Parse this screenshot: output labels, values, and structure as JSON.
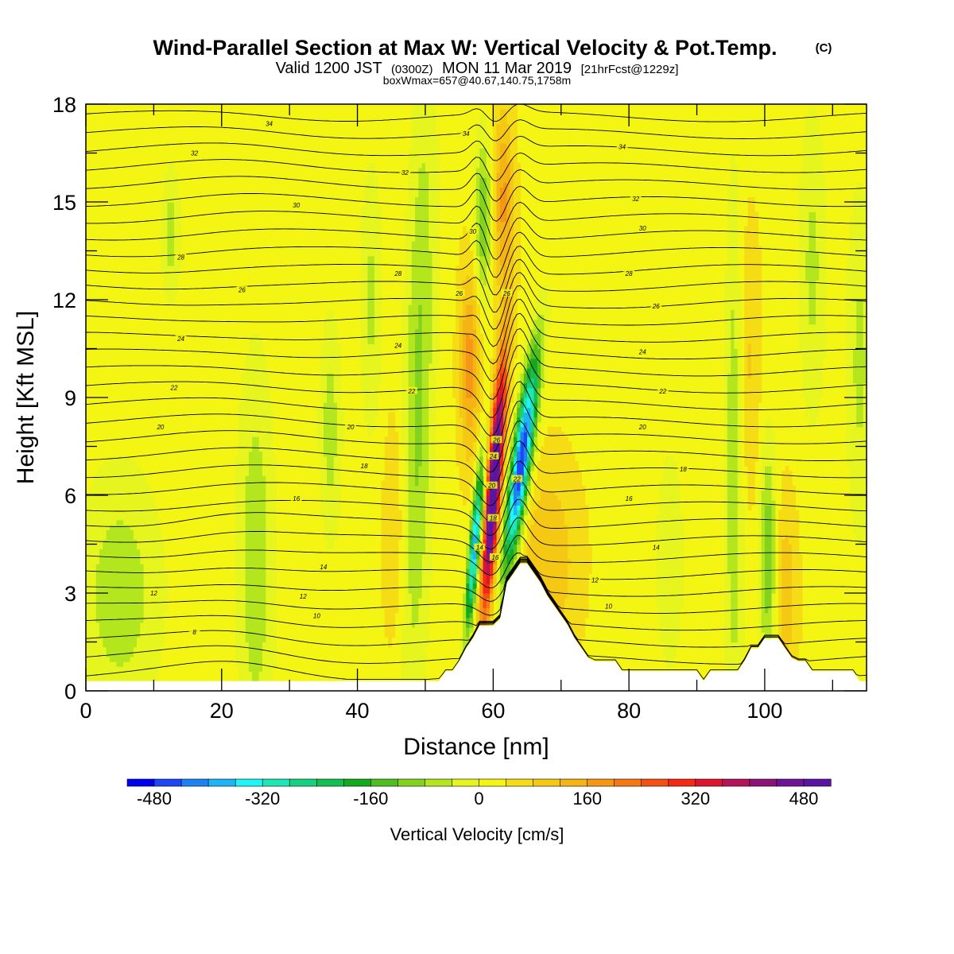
{
  "title": {
    "main": "Wind-Parallel Section at Max W: Vertical Velocity & Pot.Temp.",
    "copyright": "(C)",
    "valid_prefix": "Valid 1200 JST",
    "valid_utc": "(0300Z)",
    "valid_date": "MON 11 Mar 2019",
    "forecast": "[21hrFcst@1229z]",
    "subtitle": "boxWmax=657@40.67,140.75,1758m"
  },
  "chart_data": {
    "type": "heatmap",
    "xlabel": "Distance [nm]",
    "ylabel": "Height [Kft MSL]",
    "xlim": [
      0,
      115
    ],
    "ylim": [
      0,
      18
    ],
    "x_ticks": [
      0,
      20,
      40,
      60,
      80,
      100
    ],
    "y_ticks": [
      0,
      3,
      6,
      9,
      12,
      15,
      18
    ],
    "colorbar": {
      "title": "Vertical Velocity [cm/s]",
      "min": -520,
      "max": 520,
      "step": 40,
      "tick_values": [
        -480,
        -320,
        -160,
        0,
        160,
        320,
        480
      ],
      "colors": [
        "#0000f0",
        "#1e46f5",
        "#1e82f5",
        "#1eb4f5",
        "#1ef5f5",
        "#1ee6b4",
        "#14d282",
        "#14be50",
        "#14aa1e",
        "#50be1e",
        "#82d21e",
        "#b4e61e",
        "#e6f51e",
        "#f5f514",
        "#f5dc14",
        "#f5c814",
        "#f5b414",
        "#f59614",
        "#f57814",
        "#f55014",
        "#f52814",
        "#dc1432",
        "#b4145a",
        "#8c1478",
        "#6e1496",
        "#5a14a0"
      ]
    },
    "contour_labels": [
      {
        "x": 27,
        "y": 17.4,
        "text": "34"
      },
      {
        "x": 56,
        "y": 17.1,
        "text": "34"
      },
      {
        "x": 79,
        "y": 16.7,
        "text": "34"
      },
      {
        "x": 16,
        "y": 16.5,
        "text": "32"
      },
      {
        "x": 47,
        "y": 15.9,
        "text": "32"
      },
      {
        "x": 81,
        "y": 15.1,
        "text": "32"
      },
      {
        "x": 31,
        "y": 14.9,
        "text": "30"
      },
      {
        "x": 57,
        "y": 14.1,
        "text": "30"
      },
      {
        "x": 82,
        "y": 14.2,
        "text": "30"
      },
      {
        "x": 14,
        "y": 13.3,
        "text": "28"
      },
      {
        "x": 46,
        "y": 12.8,
        "text": "28"
      },
      {
        "x": 80,
        "y": 12.8,
        "text": "28"
      },
      {
        "x": 23,
        "y": 12.3,
        "text": "26"
      },
      {
        "x": 55,
        "y": 12.2,
        "text": "26"
      },
      {
        "x": 62,
        "y": 12.2,
        "text": "26"
      },
      {
        "x": 84,
        "y": 11.8,
        "text": "26"
      },
      {
        "x": 14,
        "y": 10.8,
        "text": "24"
      },
      {
        "x": 46,
        "y": 10.6,
        "text": "24"
      },
      {
        "x": 82,
        "y": 10.4,
        "text": "24"
      },
      {
        "x": 13,
        "y": 9.3,
        "text": "22"
      },
      {
        "x": 48,
        "y": 9.2,
        "text": "22"
      },
      {
        "x": 85,
        "y": 9.2,
        "text": "22"
      },
      {
        "x": 11,
        "y": 8.1,
        "text": "20"
      },
      {
        "x": 39,
        "y": 8.1,
        "text": "20"
      },
      {
        "x": 82,
        "y": 8.1,
        "text": "20"
      },
      {
        "x": 41,
        "y": 6.9,
        "text": "18"
      },
      {
        "x": 88,
        "y": 6.8,
        "text": "18"
      },
      {
        "x": 31,
        "y": 5.9,
        "text": "16"
      },
      {
        "x": 80,
        "y": 5.9,
        "text": "16"
      },
      {
        "x": 35,
        "y": 3.8,
        "text": "14"
      },
      {
        "x": 84,
        "y": 4.4,
        "text": "14"
      },
      {
        "x": 32,
        "y": 2.9,
        "text": "12"
      },
      {
        "x": 75,
        "y": 3.4,
        "text": "12"
      },
      {
        "x": 10,
        "y": 3.0,
        "text": "12"
      },
      {
        "x": 34,
        "y": 2.3,
        "text": "10"
      },
      {
        "x": 77,
        "y": 2.6,
        "text": "10"
      },
      {
        "x": 16,
        "y": 1.8,
        "text": "8"
      },
      {
        "x": 58,
        "y": 4.4,
        "text": "14"
      },
      {
        "x": 60.5,
        "y": 7.7,
        "text": "26"
      },
      {
        "x": 60,
        "y": 7.2,
        "text": "24"
      },
      {
        "x": 59.8,
        "y": 6.3,
        "text": "20"
      },
      {
        "x": 60,
        "y": 5.3,
        "text": "18"
      },
      {
        "x": 60.3,
        "y": 4.1,
        "text": "16"
      },
      {
        "x": 63.5,
        "y": 6.5,
        "text": "22"
      }
    ],
    "terrain": [
      [
        0,
        0.3
      ],
      [
        52,
        0.3
      ],
      [
        53,
        0.6
      ],
      [
        54,
        0.6
      ],
      [
        55,
        0.9
      ],
      [
        56,
        1.3
      ],
      [
        57,
        1.6
      ],
      [
        58,
        2.0
      ],
      [
        59,
        2.0
      ],
      [
        60,
        2.0
      ],
      [
        61,
        2.2
      ],
      [
        62,
        3.3
      ],
      [
        63,
        3.6
      ],
      [
        64,
        3.9
      ],
      [
        65,
        3.9
      ],
      [
        66,
        3.6
      ],
      [
        67,
        3.3
      ],
      [
        68,
        2.9
      ],
      [
        69,
        2.6
      ],
      [
        70,
        2.3
      ],
      [
        71,
        2.0
      ],
      [
        72,
        1.6
      ],
      [
        73,
        1.3
      ],
      [
        74,
        1.0
      ],
      [
        75,
        0.9
      ],
      [
        76,
        0.9
      ],
      [
        77,
        0.9
      ],
      [
        78,
        0.9
      ],
      [
        79,
        0.6
      ],
      [
        80,
        0.6
      ],
      [
        90,
        0.6
      ],
      [
        91,
        0.3
      ],
      [
        92,
        0.6
      ],
      [
        94,
        0.6
      ],
      [
        96,
        0.6
      ],
      [
        97,
        0.9
      ],
      [
        98,
        1.3
      ],
      [
        99,
        1.3
      ],
      [
        100,
        1.6
      ],
      [
        101,
        1.6
      ],
      [
        102,
        1.6
      ],
      [
        103,
        1.3
      ],
      [
        104,
        1.0
      ],
      [
        105,
        0.9
      ],
      [
        106,
        0.9
      ],
      [
        107,
        0.6
      ],
      [
        113,
        0.6
      ],
      [
        114,
        0.3
      ],
      [
        115,
        0.3
      ]
    ]
  }
}
